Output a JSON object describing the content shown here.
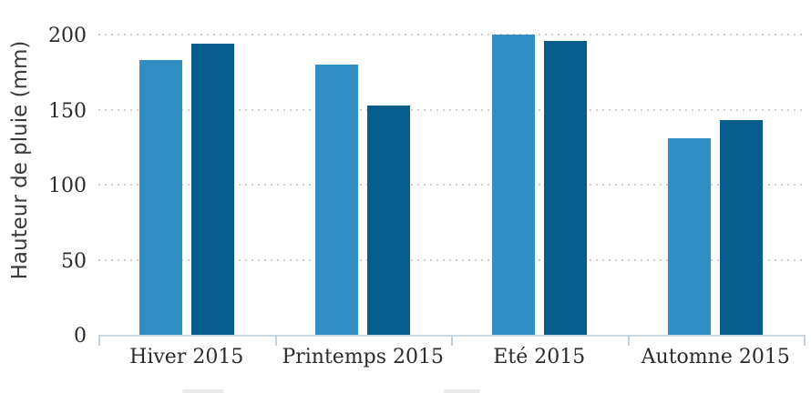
{
  "chart_data": {
    "type": "bar",
    "title": "",
    "xlabel": "",
    "ylabel": "Hauteur de pluie (mm)",
    "categories": [
      "Hiver 2015",
      "Printemps 2015",
      "Eté 2015",
      "Automne 2015"
    ],
    "series": [
      {
        "name": "",
        "color": "#318ec4",
        "values": [
          183,
          180,
          200,
          131
        ]
      },
      {
        "name": "",
        "color": "#055c8d",
        "values": [
          194,
          153,
          196,
          143
        ]
      }
    ],
    "ylim": [
      0,
      200
    ],
    "yticks": [
      0,
      50,
      100,
      150,
      200
    ],
    "grid": "horizontal-dotted",
    "gridline_color": "#cfcfcf",
    "axis_line_color": "#c9d8e2",
    "text_color": "#2b2b2b",
    "legend_position": "bottom-cut-off"
  }
}
